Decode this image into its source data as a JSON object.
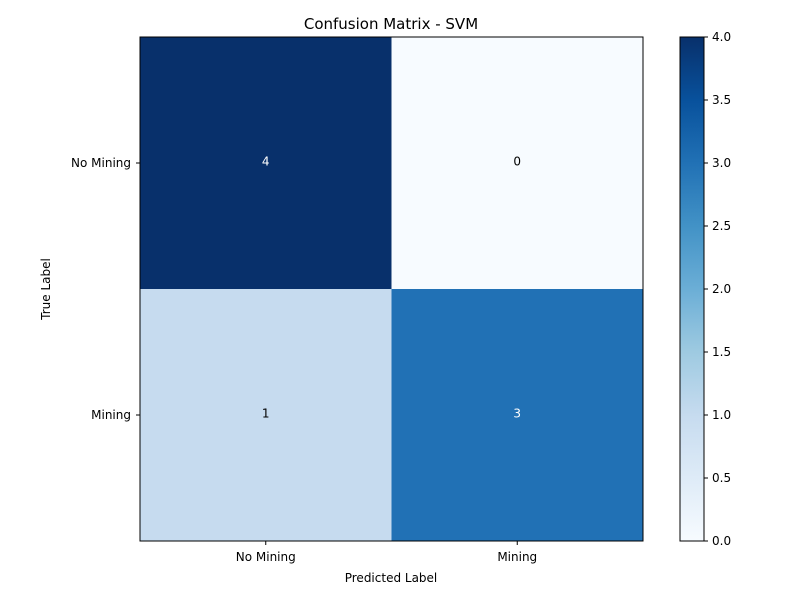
{
  "chart_data": {
    "type": "heatmap",
    "title": "Confusion Matrix - SVM",
    "xlabel": "Predicted Label",
    "ylabel": "True Label",
    "x_categories": [
      "No Mining",
      "Mining"
    ],
    "y_categories": [
      "No Mining",
      "Mining"
    ],
    "values": [
      [
        4,
        0
      ],
      [
        1,
        3
      ]
    ],
    "cell_labels": [
      [
        "4",
        "0"
      ],
      [
        "1",
        "3"
      ]
    ],
    "colormap": "Blues",
    "vmin": 0,
    "vmax": 4,
    "colorbar_ticks": [
      "0.0",
      "0.5",
      "1.0",
      "1.5",
      "2.0",
      "2.5",
      "3.0",
      "3.5",
      "4.0"
    ],
    "grid": false
  }
}
